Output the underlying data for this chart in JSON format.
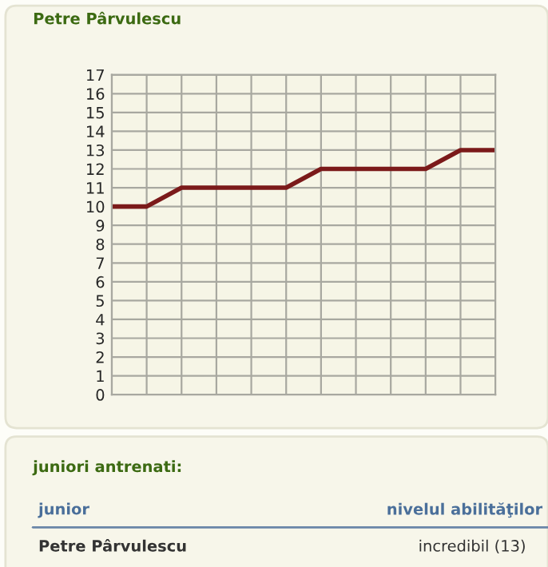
{
  "chart_data": {
    "type": "line",
    "title": "Petre Pârvulescu",
    "categories": [
      null,
      null,
      null,
      null,
      null,
      null,
      null,
      null,
      null,
      null,
      null,
      null
    ],
    "series": [
      {
        "color": "#7b1a1a",
        "values": [
          10,
          10,
          11,
          11,
          11,
          11,
          12,
          12,
          12,
          12,
          13,
          13
        ]
      }
    ],
    "ylim": [
      0,
      17
    ],
    "yticks": [
      0,
      1,
      2,
      3,
      4,
      5,
      6,
      7,
      8,
      9,
      10,
      11,
      12,
      13,
      14,
      15,
      16,
      17
    ],
    "grid": true,
    "marker": "none",
    "line_style": "solid",
    "tick_labels": "y",
    "annotations": [
      "juniori antrenati:",
      "junior",
      "nivelul abilităţilor",
      "Petre Pârvulescu",
      "incredibil (13)"
    ]
  }
}
